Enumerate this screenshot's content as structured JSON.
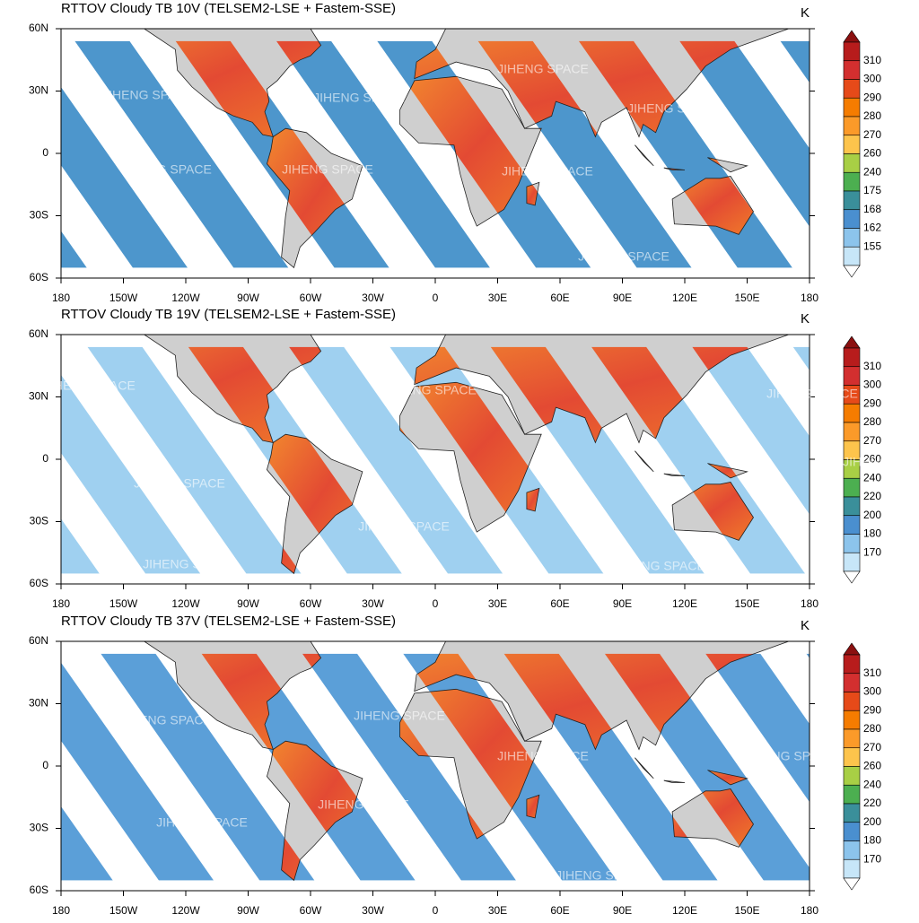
{
  "panels": [
    {
      "title": "RTTOV Cloudy TB 10V (TELSEM2-LSE + Fastem-SSE)",
      "unit": "K",
      "colorbar_labels": [
        310,
        300,
        290,
        280,
        270,
        260,
        240,
        175,
        168,
        162,
        155
      ]
    },
    {
      "title": "RTTOV Cloudy TB 19V (TELSEM2-LSE + Fastem-SSE)",
      "unit": "K",
      "colorbar_labels": [
        310,
        300,
        290,
        280,
        270,
        260,
        240,
        220,
        200,
        180,
        170
      ]
    },
    {
      "title": "RTTOV Cloudy TB 37V (TELSEM2-LSE + Fastem-SSE)",
      "unit": "K",
      "colorbar_labels": [
        310,
        300,
        290,
        280,
        270,
        260,
        240,
        220,
        200,
        180,
        170
      ]
    }
  ],
  "lat_labels": [
    "60N",
    "30N",
    "0",
    "30S",
    "60S"
  ],
  "lon_labels": [
    "180",
    "150W",
    "120W",
    "90W",
    "60W",
    "30W",
    "0",
    "30E",
    "60E",
    "90E",
    "120E",
    "150E",
    "180"
  ],
  "watermark": "JIHENG SPACE"
}
